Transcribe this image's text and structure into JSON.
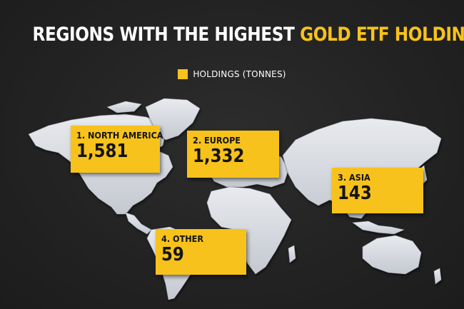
{
  "title": {
    "main": "REGIONS WITH THE HIGHEST ",
    "accent": "GOLD ETF HOLDINGS"
  },
  "colors": {
    "gold": "#f7c21b",
    "background": "#232323",
    "land": "#d6d9df"
  },
  "chart_data": {
    "type": "bar",
    "title": "REGIONS WITH THE HIGHEST GOLD ETF HOLDINGS",
    "categories": [
      "1. NORTH AMERICA",
      "2. EUROPE",
      "3. ASIA",
      "4. OTHER"
    ],
    "series": [
      {
        "name": "HOLDINGS (TONNES)",
        "values": [
          1581,
          1332,
          143,
          59
        ]
      }
    ],
    "value_labels": [
      "1,581",
      "1,332",
      "143",
      "59"
    ],
    "legend": {
      "label": "HOLDINGS (TONNES)",
      "placement": "top-center"
    }
  }
}
